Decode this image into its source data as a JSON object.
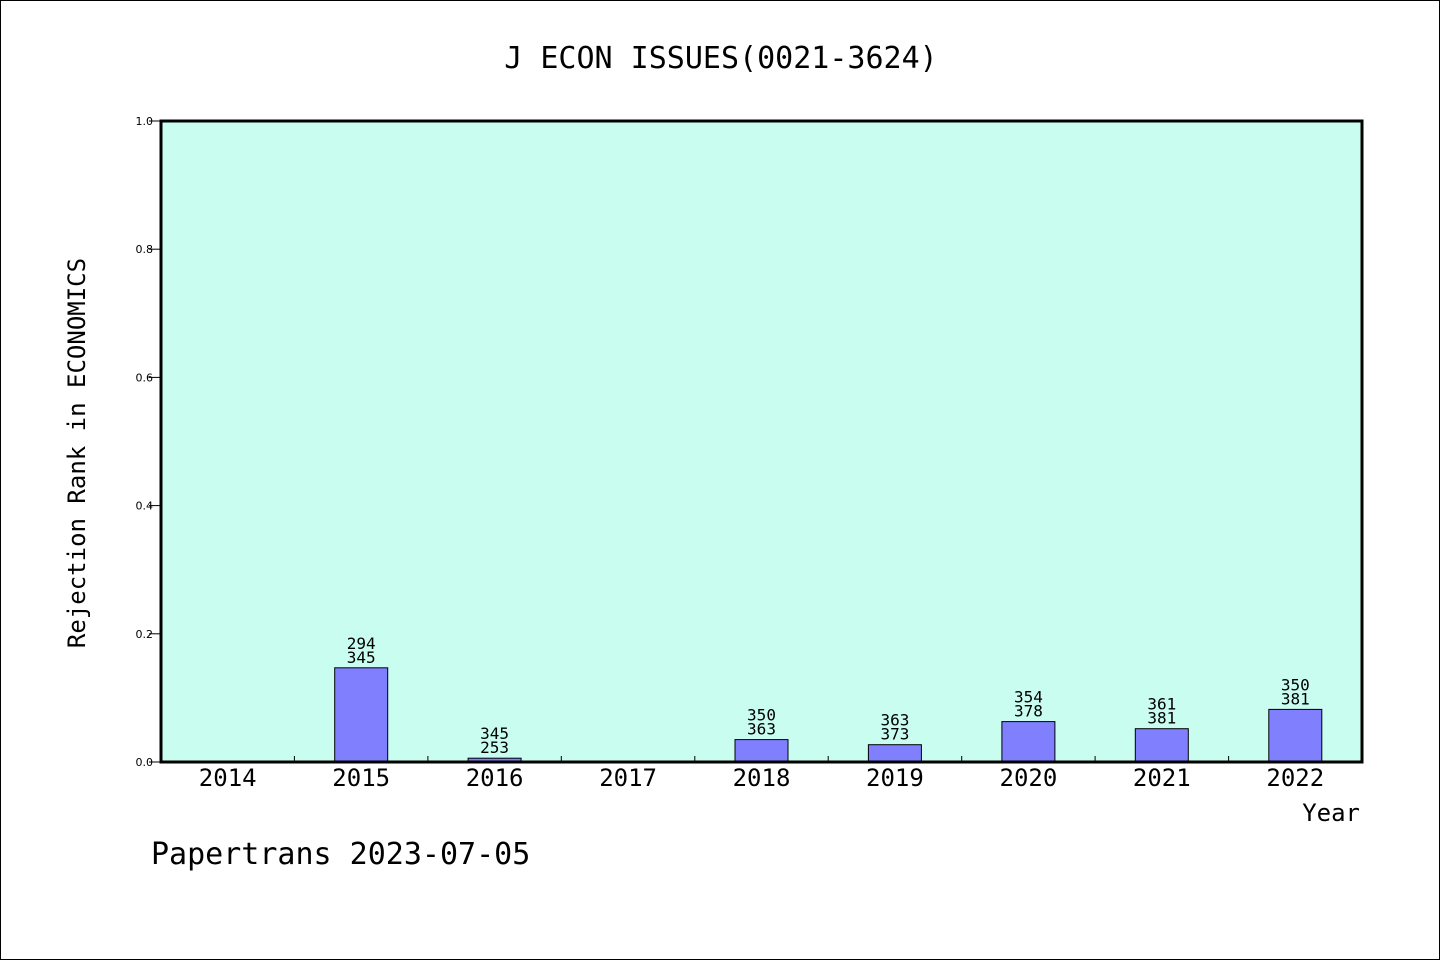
{
  "chart_data": {
    "type": "bar",
    "title": "J ECON ISSUES(0021-3624)",
    "xlabel": "Year",
    "ylabel": "Rejection Rank in ECONOMICS",
    "categories": [
      "2014",
      "2015",
      "2016",
      "2017",
      "2018",
      "2019",
      "2020",
      "2021",
      "2022"
    ],
    "values": [
      0,
      0.147,
      0.006,
      0,
      0.035,
      0.027,
      0.063,
      0.052,
      0.082
    ],
    "data_labels": [
      [
        "",
        ""
      ],
      [
        "294",
        "345"
      ],
      [
        "345",
        "253"
      ],
      [
        "",
        ""
      ],
      [
        "350",
        "363"
      ],
      [
        "363",
        "373"
      ],
      [
        "354",
        "378"
      ],
      [
        "361",
        "381"
      ],
      [
        "350",
        "381"
      ]
    ],
    "ylim": [
      0,
      1.0
    ],
    "yticks": [
      0.0,
      0.2,
      0.4,
      0.6,
      0.8,
      1.0
    ],
    "ytick_labels": [
      "0.0",
      "0.2",
      "0.4",
      "0.6",
      "0.8",
      "1.0"
    ],
    "grid": false,
    "legend": "none"
  },
  "footer": "Papertrans 2023-07-05",
  "colors": {
    "plot_background": "#c8fdef",
    "bar_fill": "#8080ff",
    "bar_stroke": "#000000",
    "axis": "#000000",
    "text": "#000000"
  }
}
